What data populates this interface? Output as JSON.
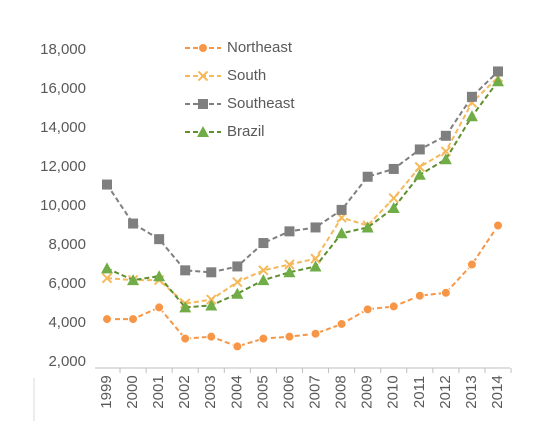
{
  "chart_data": {
    "type": "line",
    "categories": [
      "1999",
      "2000",
      "2001",
      "2002",
      "2003",
      "2004",
      "2005",
      "2006",
      "2007",
      "2008",
      "2009",
      "2010",
      "2011",
      "2012",
      "2013",
      "2014"
    ],
    "series": [
      {
        "name": "Northeast",
        "color": "#f79646",
        "marker": "circle",
        "values": [
          4200,
          4200,
          4800,
          3200,
          3300,
          2800,
          3200,
          3300,
          3450,
          3950,
          4700,
          4850,
          5400,
          5550,
          7000,
          9000
        ]
      },
      {
        "name": "South",
        "color": "#f5b95a",
        "marker": "x",
        "values": [
          6300,
          6200,
          6200,
          5000,
          5200,
          6100,
          6700,
          7000,
          7300,
          9400,
          9000,
          10400,
          12000,
          12800,
          15300,
          16600
        ]
      },
      {
        "name": "Southeast",
        "color": "#7f7f7f",
        "marker": "square",
        "values": [
          11100,
          9100,
          8300,
          6700,
          6600,
          6900,
          8100,
          8700,
          8900,
          9800,
          11500,
          11900,
          12900,
          13600,
          15600,
          16900
        ]
      },
      {
        "name": "Brazil",
        "color": "#5f8f2f",
        "marker": "triangle",
        "values": [
          6800,
          6200,
          6400,
          4800,
          4900,
          5500,
          6200,
          6600,
          6900,
          8600,
          8900,
          9900,
          11600,
          12400,
          14600,
          16400
        ]
      }
    ],
    "ylim": [
      2000,
      18000
    ],
    "yticks": [
      {
        "value": 2000,
        "label": "2,000"
      },
      {
        "value": 4000,
        "label": "4,000"
      },
      {
        "value": 6000,
        "label": "6,000"
      },
      {
        "value": 8000,
        "label": "8,000"
      },
      {
        "value": 10000,
        "label": "10,000"
      },
      {
        "value": 12000,
        "label": "12,000"
      },
      {
        "value": 14000,
        "label": "14,000"
      },
      {
        "value": 16000,
        "label": "16,000"
      },
      {
        "value": 18000,
        "label": "18,000"
      }
    ],
    "grid": false,
    "legend": "top-left"
  }
}
